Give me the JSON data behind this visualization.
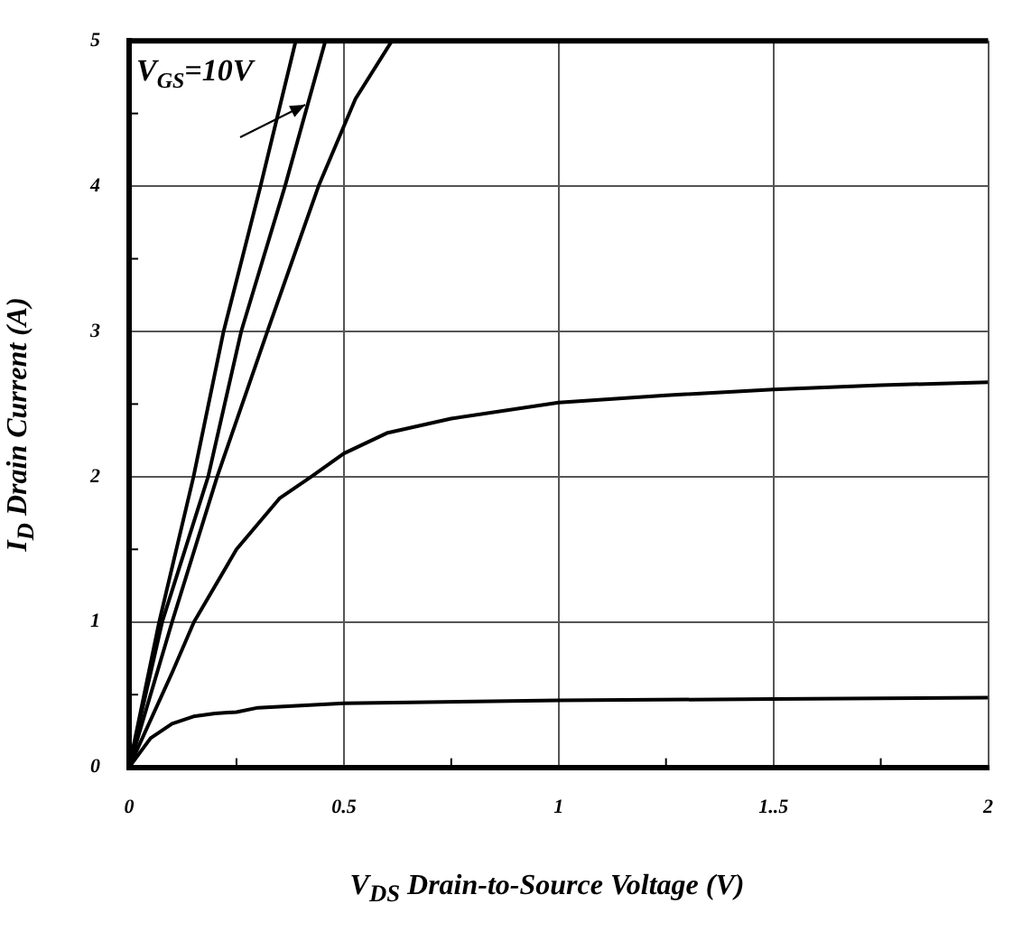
{
  "chart_data": {
    "type": "line",
    "xlabel": "V$_{DS}$ Drain-to-Source Voltage (V)",
    "ylabel": "I$_{D}$ Drain Current (A)",
    "xlim": [
      0,
      2
    ],
    "ylim": [
      0,
      5
    ],
    "xticks": [
      0,
      {
        "value": 0.25,
        "label": null
      },
      0.5,
      {
        "value": 0.75,
        "label": null
      },
      1,
      {
        "value": 1.25,
        "label": null
      },
      {
        "value": 1.5,
        "label": "1..5"
      },
      {
        "value": 1.75,
        "label": null
      },
      2
    ],
    "yticks": [
      0,
      {
        "value": 0.5,
        "label": null
      },
      1,
      {
        "value": 1.5,
        "label": null
      },
      2,
      {
        "value": 2.5,
        "label": null
      },
      3,
      {
        "value": 3.5,
        "label": null
      },
      4,
      {
        "value": 4.5,
        "label": null
      },
      5
    ],
    "grid": true,
    "legend": false,
    "marker": "none",
    "line_style": "solid",
    "annotations": [
      {
        "text": "V$_{GS}$=10V",
        "x": 0.41,
        "y": 4.56
      }
    ],
    "series": [
      {
        "color": "#000000",
        "x": [
          0,
          0.07,
          0.15,
          0.22,
          0.306,
          0.388
        ],
        "values": [
          0,
          1,
          2,
          3,
          4,
          5
        ]
      },
      {
        "color": "#000000",
        "x": [
          0,
          0.077,
          0.184,
          0.261,
          0.363,
          0.457
        ],
        "values": [
          0,
          1,
          2,
          3,
          4,
          5
        ]
      },
      {
        "color": "#000000",
        "x": [
          0,
          0.1,
          0.205,
          0.322,
          0.441,
          0.527,
          0.612
        ],
        "values": [
          0,
          1,
          2,
          3,
          4,
          4.6,
          5
        ]
      },
      {
        "color": "#000000",
        "x": [
          0,
          0.1,
          0.151,
          0.25,
          0.35,
          0.424,
          0.5,
          0.6,
          0.75,
          1,
          1.25,
          1.5,
          1.75,
          2
        ],
        "values": [
          0,
          0.65,
          1,
          1.5,
          1.85,
          2,
          2.16,
          2.3,
          2.4,
          2.51,
          2.56,
          2.6,
          2.63,
          2.65
        ]
      },
      {
        "color": "#000000",
        "x": [
          0,
          0.05,
          0.1,
          0.15,
          0.2,
          0.25,
          0.3,
          0.5,
          1,
          1.5,
          2
        ],
        "values": [
          0,
          0.2,
          0.3,
          0.35,
          0.37,
          0.38,
          0.41,
          0.44,
          0.46,
          0.47,
          0.48
        ]
      }
    ]
  }
}
